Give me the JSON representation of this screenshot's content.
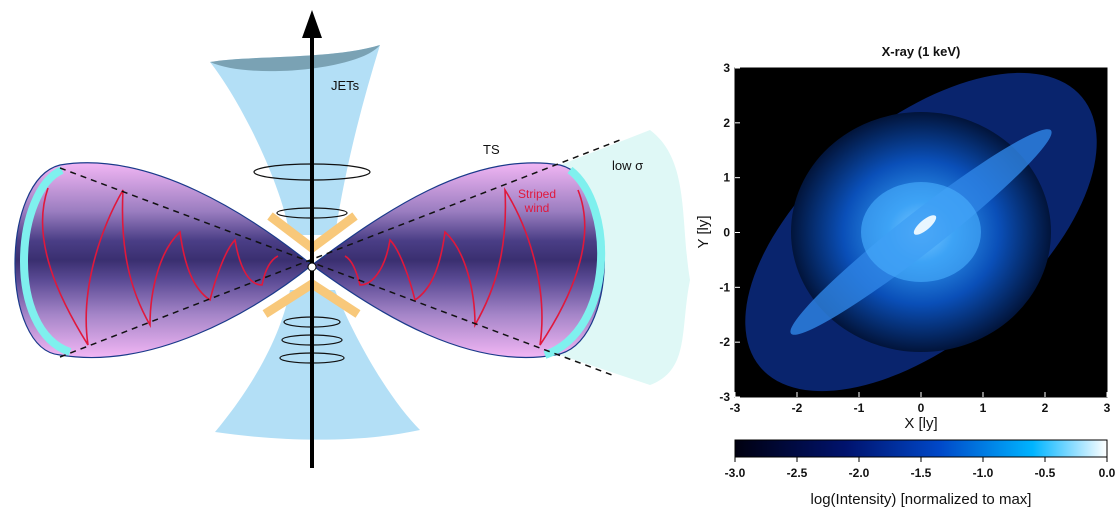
{
  "diagram": {
    "labels": {
      "jets": "JETs",
      "ts": "TS",
      "low_sigma": "low σ",
      "striped": "Striped",
      "wind": "wind"
    }
  },
  "panel": {
    "title": "X-ray (1 keV)",
    "xlabel": "X [ly]",
    "ylabel": "Y [ly]",
    "xlim": [
      -3,
      3
    ],
    "ylim": [
      -3,
      3
    ],
    "xticks": [
      -3,
      -2,
      -1,
      0,
      1,
      2,
      3
    ],
    "yticks": [
      -3,
      -2,
      -1,
      0,
      1,
      2,
      3
    ],
    "colorbar": {
      "lim": [
        -3,
        0
      ],
      "label": "log(Intensity) [normalized to max]",
      "ticks": [
        {
          "value": -3,
          "label": "-3.0"
        },
        {
          "value": -2.5,
          "label": "-2.5"
        },
        {
          "value": -2,
          "label": "-2.0"
        },
        {
          "value": -1.5,
          "label": "-1.5"
        },
        {
          "value": -1,
          "label": "-1.0"
        },
        {
          "value": -0.5,
          "label": "-0.5"
        },
        {
          "value": 0,
          "label": "0.0"
        }
      ]
    }
  }
}
